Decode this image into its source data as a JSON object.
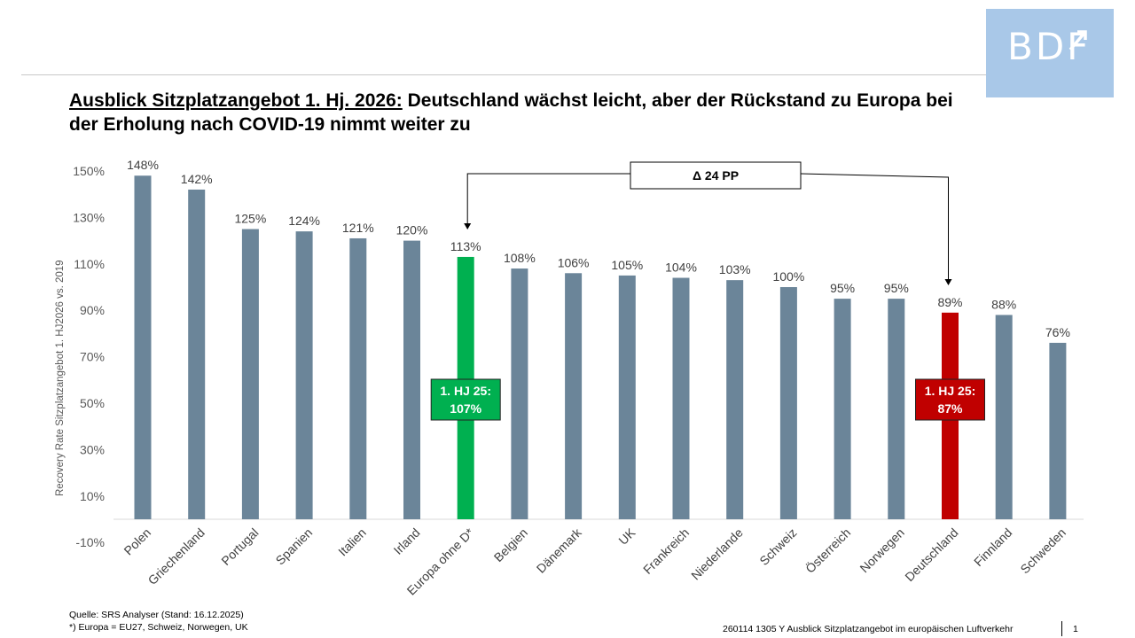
{
  "title": {
    "underlined": "Ausblick Sitzplatzangebot 1. Hj. 2026:",
    "rest": "Deutschland wächst leicht, aber der Rückstand zu Europa bei der Erholung nach COVID-19 nimmt weiter zu"
  },
  "logo": "BDF",
  "chart_data": {
    "type": "bar",
    "ylabel": "Recovery Rate Sitzplatzangebot 1. HJ2026 vs. 2019",
    "yticks": [
      "150%",
      "130%",
      "110%",
      "90%",
      "70%",
      "50%",
      "30%",
      "10%",
      "-10%"
    ],
    "ylim": [
      -10,
      150
    ],
    "unit": "%",
    "categories": [
      "Polen",
      "Griechenland",
      "Portugal",
      "Spanien",
      "Italien",
      "Irland",
      "Europa ohne D*",
      "Belgien",
      "Dänemark",
      "UK",
      "Frankreich",
      "Niederlande",
      "Schweiz",
      "Österreich",
      "Norwegen",
      "Deutschland",
      "Finnland",
      "Schweden"
    ],
    "values": [
      148,
      142,
      125,
      124,
      121,
      120,
      113,
      108,
      106,
      105,
      104,
      103,
      100,
      95,
      95,
      89,
      88,
      76
    ],
    "value_labels": [
      "148%",
      "142%",
      "125%",
      "124%",
      "121%",
      "120%",
      "113%",
      "108%",
      "106%",
      "105%",
      "104%",
      "103%",
      "100%",
      "95%",
      "95%",
      "89%",
      "88%",
      "76%"
    ],
    "colors": {
      "default": "#6b8599",
      "europa": "#00b050",
      "deutschland": "#c00000"
    },
    "highlight": {
      "Europa ohne D*": "#00b050",
      "Deutschland": "#c00000"
    },
    "annotations": [
      {
        "category": "Europa ohne D*",
        "line1": "1. HJ 25:",
        "line2": "107%",
        "color": "#00b050"
      },
      {
        "category": "Deutschland",
        "line1": "1. HJ 25:",
        "line2": "87%",
        "color": "#c00000"
      }
    ],
    "delta_label": "Δ 24 PP",
    "grid": false
  },
  "footer": {
    "source": "Quelle: SRS Analyser (Stand: 16.12.2025)",
    "note": "*) Europa = EU27, Schweiz, Norwegen, UK",
    "doc": "260114 1305 Y Ausblick Sitzplatzangebot im europäischen Luftverkehr",
    "page": "1"
  }
}
